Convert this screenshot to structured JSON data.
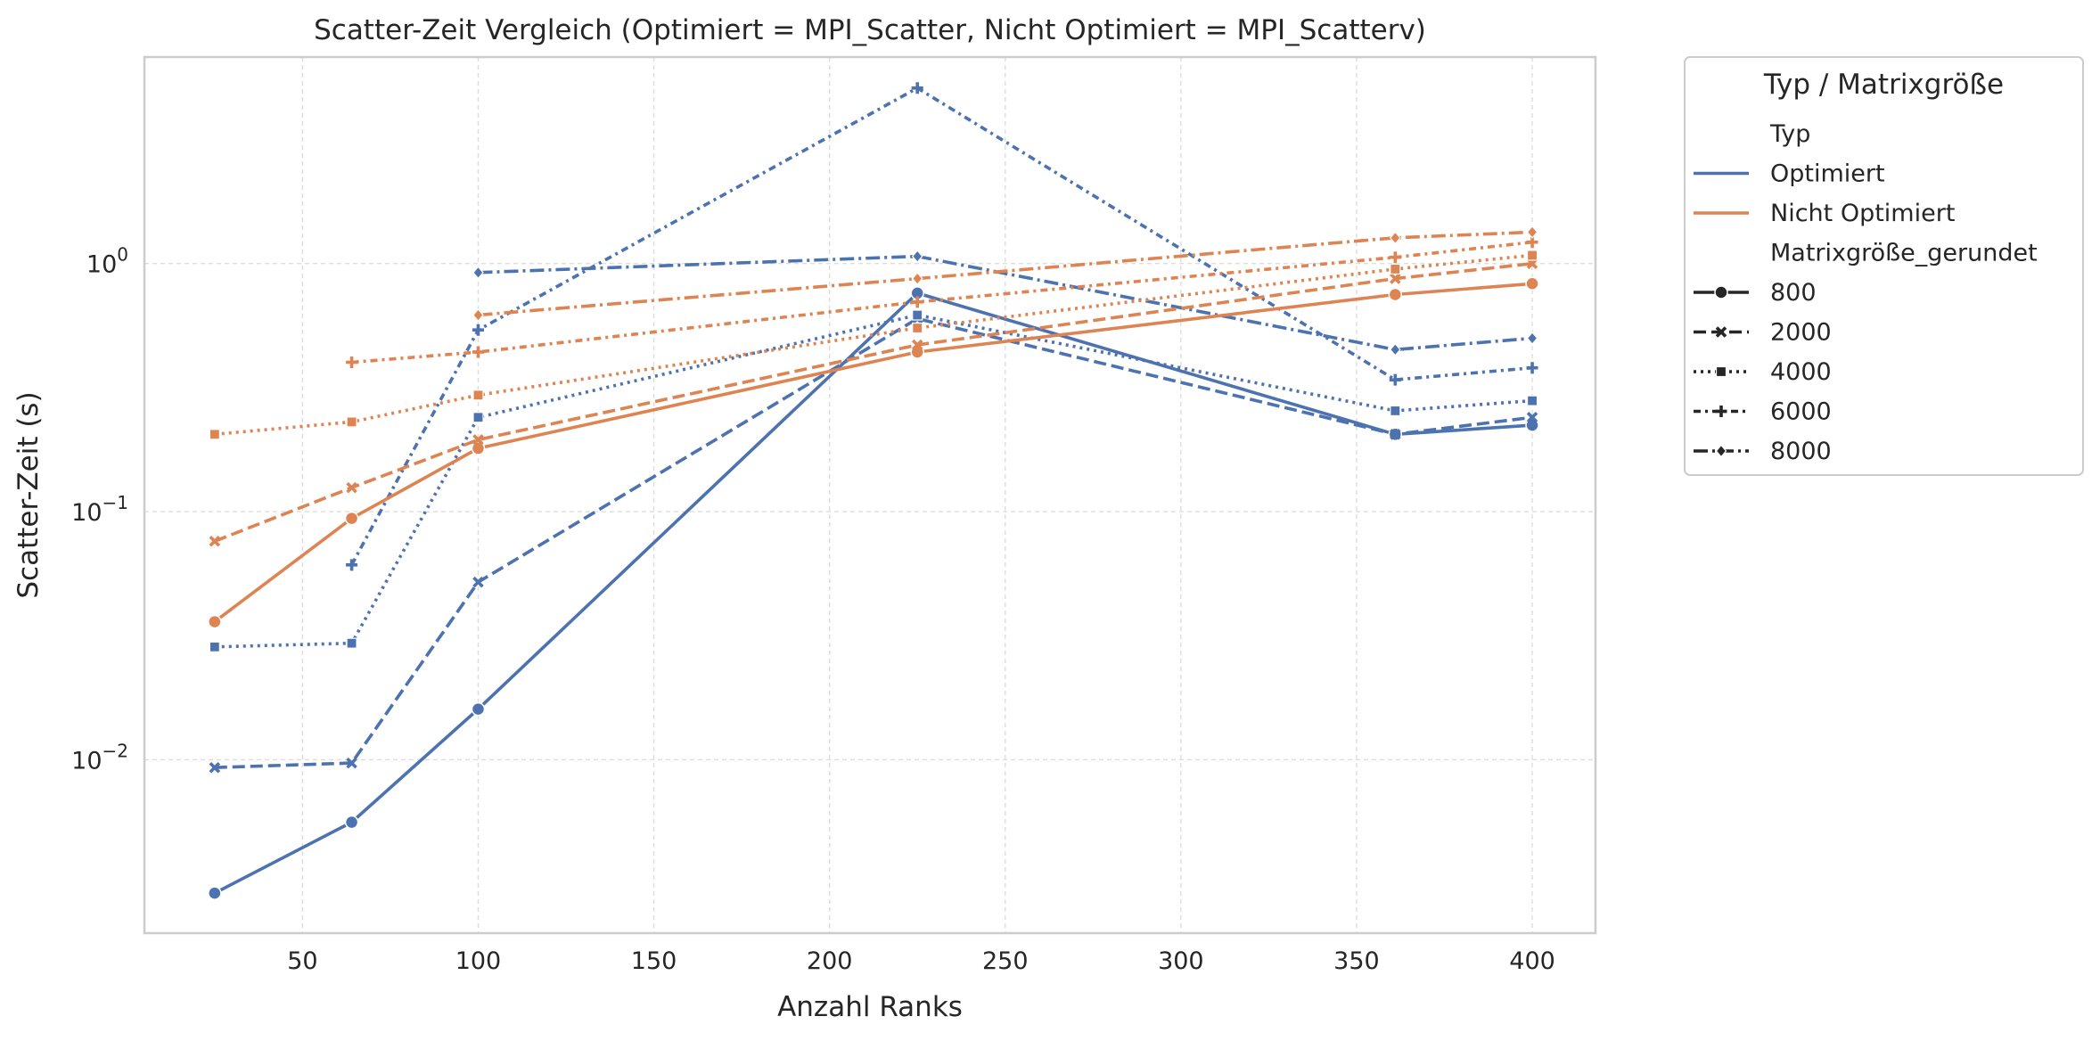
{
  "chart_data": {
    "type": "line",
    "title": "Scatter-Zeit Vergleich (Optimiert = MPI_Scatter, Nicht Optimiert = MPI_Scatterv)",
    "xlabel": "Anzahl Ranks",
    "ylabel": "Scatter-Zeit (s)",
    "xlim": [
      5,
      418
    ],
    "ylim": [
      0.002,
      6.8
    ],
    "y_scale": "log",
    "x_ticks": [
      50,
      100,
      150,
      200,
      250,
      300,
      350,
      400
    ],
    "y_ticks": [
      {
        "value": 0.01,
        "base": "10",
        "exp": "−2"
      },
      {
        "value": 0.1,
        "base": "10",
        "exp": "−1"
      },
      {
        "value": 1,
        "base": "10",
        "exp": "0"
      }
    ],
    "grid": true,
    "legend": {
      "title": "Typ / Matrixgröße",
      "placement": "outside-right",
      "hue_title": "Typ",
      "hue_entries": [
        {
          "label": "Optimiert",
          "color": "#4c72b0"
        },
        {
          "label": "Nicht Optimiert",
          "color": "#dd8452"
        }
      ],
      "style_title": "Matrixgröße_gerundet",
      "style_entries": [
        {
          "label": "800",
          "dash": "solid",
          "marker": "circle"
        },
        {
          "label": "2000",
          "dash": "dashed",
          "marker": "x"
        },
        {
          "label": "4000",
          "dash": "dotted",
          "marker": "square"
        },
        {
          "label": "6000",
          "dash": "dashdot-short",
          "marker": "plus"
        },
        {
          "label": "8000",
          "dash": "dashdot",
          "marker": "diamond"
        }
      ]
    },
    "series": [
      {
        "typ": "Optimiert",
        "size": "800",
        "color": "#4c72b0",
        "dash": "solid",
        "marker": "circle",
        "x": [
          25,
          64,
          100,
          225,
          361,
          400
        ],
        "y": [
          0.0029,
          0.0056,
          0.016,
          0.76,
          0.205,
          0.223
        ]
      },
      {
        "typ": "Optimiert",
        "size": "2000",
        "color": "#4c72b0",
        "dash": "dashed",
        "marker": "x",
        "x": [
          25,
          64,
          100,
          225,
          361,
          400
        ],
        "y": [
          0.0093,
          0.0097,
          0.052,
          0.6,
          0.205,
          0.24
        ]
      },
      {
        "typ": "Optimiert",
        "size": "4000",
        "color": "#4c72b0",
        "dash": "dotted",
        "marker": "square",
        "x": [
          25,
          64,
          100,
          225,
          361,
          400
        ],
        "y": [
          0.0285,
          0.0295,
          0.24,
          0.62,
          0.255,
          0.28
        ]
      },
      {
        "typ": "Optimiert",
        "size": "6000",
        "color": "#4c72b0",
        "dash": "dashdot-short",
        "marker": "plus",
        "x": [
          64,
          100,
          225,
          361,
          400
        ],
        "y": [
          0.061,
          0.54,
          5.1,
          0.34,
          0.38
        ]
      },
      {
        "typ": "Optimiert",
        "size": "8000",
        "color": "#4c72b0",
        "dash": "dashdot",
        "marker": "diamond",
        "x": [
          100,
          225,
          361,
          400
        ],
        "y": [
          0.92,
          1.07,
          0.45,
          0.5
        ]
      },
      {
        "typ": "Nicht Optimiert",
        "size": "800",
        "color": "#dd8452",
        "dash": "solid",
        "marker": "circle",
        "x": [
          25,
          64,
          100,
          225,
          361,
          400
        ],
        "y": [
          0.036,
          0.094,
          0.18,
          0.44,
          0.75,
          0.83
        ]
      },
      {
        "typ": "Nicht Optimiert",
        "size": "2000",
        "color": "#dd8452",
        "dash": "dashed",
        "marker": "x",
        "x": [
          25,
          64,
          100,
          225,
          361,
          400
        ],
        "y": [
          0.076,
          0.125,
          0.195,
          0.47,
          0.87,
          1.0
        ]
      },
      {
        "typ": "Nicht Optimiert",
        "size": "4000",
        "color": "#dd8452",
        "dash": "dotted",
        "marker": "square",
        "x": [
          25,
          64,
          100,
          225,
          361,
          400
        ],
        "y": [
          0.205,
          0.23,
          0.295,
          0.55,
          0.95,
          1.08
        ]
      },
      {
        "typ": "Nicht Optimiert",
        "size": "6000",
        "color": "#dd8452",
        "dash": "dashdot-short",
        "marker": "plus",
        "x": [
          64,
          100,
          225,
          361,
          400
        ],
        "y": [
          0.4,
          0.44,
          0.7,
          1.06,
          1.22
        ]
      },
      {
        "typ": "Nicht Optimiert",
        "size": "8000",
        "color": "#dd8452",
        "dash": "dashdot",
        "marker": "diamond",
        "x": [
          100,
          225,
          361,
          400
        ],
        "y": [
          0.62,
          0.87,
          1.27,
          1.34
        ]
      }
    ]
  }
}
